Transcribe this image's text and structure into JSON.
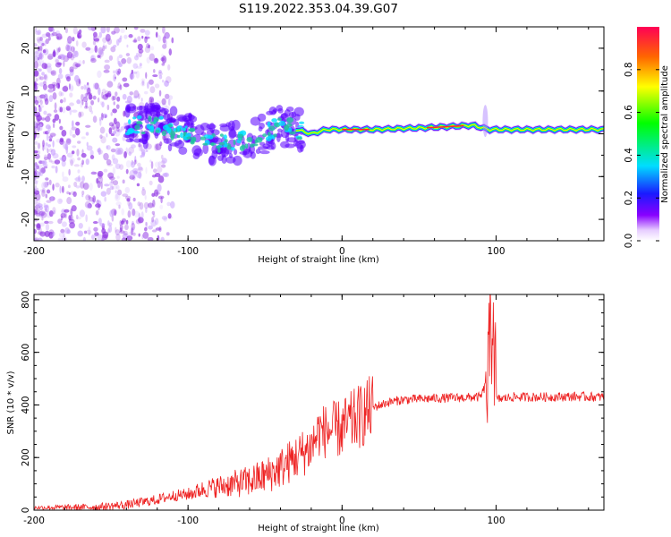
{
  "title": "S119.2022.353.04.39.G07",
  "chart_data": [
    {
      "type": "heatmap",
      "xlabel": "Height of straight line (km)",
      "ylabel": "Frequency (Hz)",
      "xlim": [
        -200,
        170
      ],
      "ylim": [
        -25,
        25
      ],
      "x_ticks": [
        "-200",
        "-100",
        "0",
        "100"
      ],
      "y_ticks": [
        "-20",
        "-10",
        "0",
        "10",
        "20"
      ],
      "colorbar": {
        "label": "Normalized spectral amplitude",
        "ticks": [
          "0.0",
          "0.2",
          "0.4",
          "0.6",
          "0.8"
        ],
        "range": [
          0,
          1
        ]
      },
      "ridge": [
        {
          "x": -140,
          "y": 2
        },
        {
          "x": -120,
          "y": 2
        },
        {
          "x": -100,
          "y": 0
        },
        {
          "x": -85,
          "y": -2
        },
        {
          "x": -70,
          "y": -2
        },
        {
          "x": -55,
          "y": -1
        },
        {
          "x": -40,
          "y": 2
        },
        {
          "x": -30,
          "y": 1
        },
        {
          "x": -20,
          "y": 0
        },
        {
          "x": -10,
          "y": 1
        },
        {
          "x": 0,
          "y": 1
        },
        {
          "x": 20,
          "y": 1
        },
        {
          "x": 60,
          "y": 1.5
        },
        {
          "x": 85,
          "y": 2
        },
        {
          "x": 95,
          "y": 1
        },
        {
          "x": 130,
          "y": 1
        },
        {
          "x": 170,
          "y": 1
        }
      ]
    },
    {
      "type": "line",
      "xlabel": "Height of straight line (km)",
      "ylabel": "SNR (10 * v/v)",
      "xlim": [
        -200,
        170
      ],
      "ylim": [
        0,
        820
      ],
      "x_ticks": [
        "-200",
        "-100",
        "0",
        "100"
      ],
      "y_ticks": [
        "0",
        "200",
        "400",
        "600",
        "800"
      ],
      "color": "#ee2222",
      "series": [
        {
          "x": [
            -200,
            -180,
            -160,
            -140,
            -130,
            -120,
            -110,
            -100,
            -90,
            -80,
            -70,
            -60,
            -50,
            -40,
            -30,
            -20,
            -15,
            -10,
            0,
            10,
            20,
            30,
            40,
            60,
            80,
            90,
            95,
            98,
            100,
            110,
            130,
            150,
            170
          ],
          "y": [
            10,
            10,
            12,
            20,
            30,
            40,
            55,
            60,
            80,
            90,
            100,
            110,
            130,
            160,
            200,
            240,
            300,
            300,
            310,
            350,
            390,
            410,
            420,
            425,
            428,
            430,
            500,
            800,
            420,
            430,
            430,
            432,
            430
          ]
        }
      ]
    }
  ]
}
